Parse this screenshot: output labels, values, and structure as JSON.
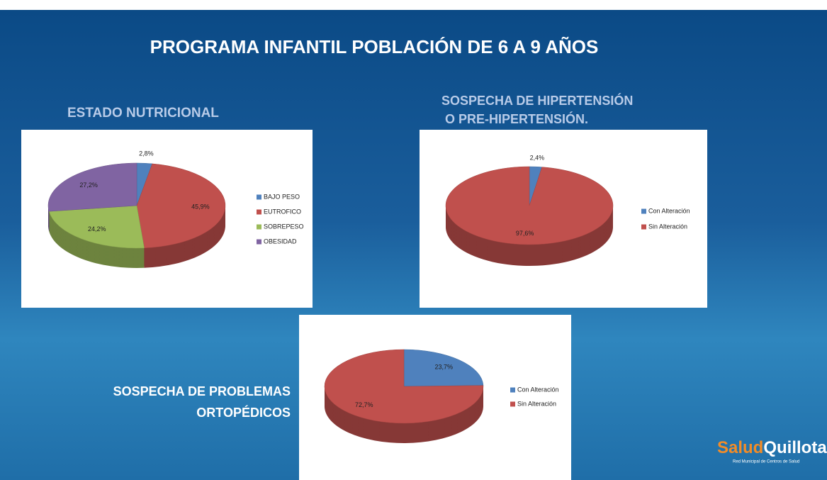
{
  "slide": {
    "title": "PROGRAMA INFANTIL POBLACIÓN DE 6 A 9 AÑOS",
    "logo": {
      "brand_1": "Salud",
      "brand_2": "Quillota",
      "tagline": "Red Municipal de Centros de Salud"
    }
  },
  "chart_data": [
    {
      "type": "pie",
      "title": [
        "ESTADO NUTRICIONAL"
      ],
      "categories": [
        "BAJO PESO",
        "EUTROFICO",
        "SOBREPESO",
        "OBESIDAD"
      ],
      "values": [
        2.8,
        45.9,
        24.2,
        27.2
      ],
      "value_labels": [
        "2,8%",
        "45,9%",
        "24,2%",
        "27,2%"
      ],
      "colors": [
        "#4f81bd",
        "#c0504d",
        "#9bbb59",
        "#8064a2"
      ]
    },
    {
      "type": "pie",
      "title": [
        "SOSPECHA DE HIPERTENSIÓN",
        "O PRE-HIPERTENSIÓN."
      ],
      "categories": [
        "Con Alteración",
        "Sin Alteración"
      ],
      "values": [
        2.4,
        97.6
      ],
      "value_labels": [
        "2,4%",
        "97,6%"
      ],
      "colors": [
        "#4f81bd",
        "#c0504d"
      ]
    },
    {
      "type": "pie",
      "title": [
        "SOSPECHA DE PROBLEMAS",
        "ORTOPÉDICOS"
      ],
      "categories": [
        "Con Alteración",
        "Sin Alteración"
      ],
      "values": [
        23.7,
        72.7
      ],
      "value_labels": [
        "23,7%",
        "72,7%"
      ],
      "colors": [
        "#4f81bd",
        "#c0504d"
      ]
    }
  ]
}
